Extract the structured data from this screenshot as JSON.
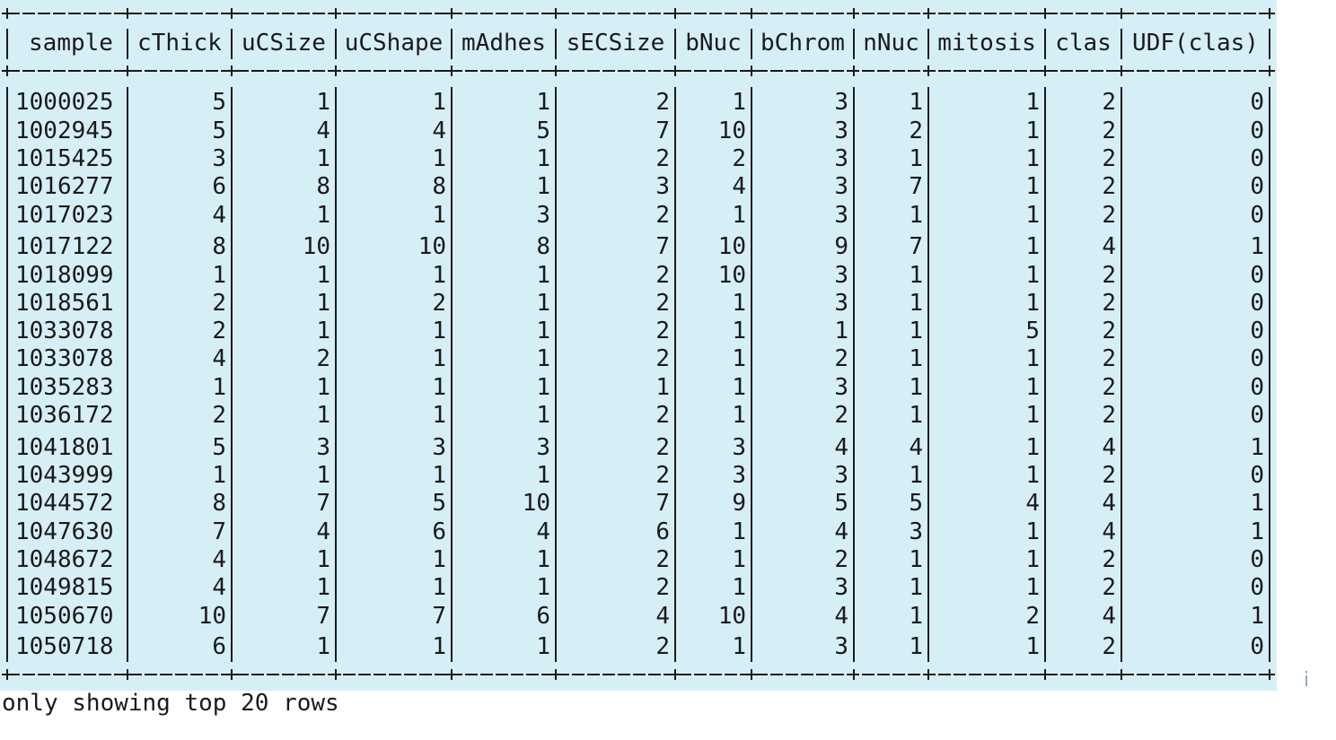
{
  "table": {
    "headers": [
      "sample",
      "cThick",
      "uCSize",
      "uCShape",
      "mAdhes",
      "sECSize",
      "bNuc",
      "bChrom",
      "nNuc",
      "mitosis",
      "clas",
      "UDF(clas)"
    ],
    "rows": [
      [
        "1000025",
        "5",
        "1",
        "1",
        "1",
        "2",
        "1",
        "3",
        "1",
        "1",
        "2",
        "0"
      ],
      [
        "1002945",
        "5",
        "4",
        "4",
        "5",
        "7",
        "10",
        "3",
        "2",
        "1",
        "2",
        "0"
      ],
      [
        "1015425",
        "3",
        "1",
        "1",
        "1",
        "2",
        "2",
        "3",
        "1",
        "1",
        "2",
        "0"
      ],
      [
        "1016277",
        "6",
        "8",
        "8",
        "1",
        "3",
        "4",
        "3",
        "7",
        "1",
        "2",
        "0"
      ],
      [
        "1017023",
        "4",
        "1",
        "1",
        "3",
        "2",
        "1",
        "3",
        "1",
        "1",
        "2",
        "0"
      ],
      [
        "1017122",
        "8",
        "10",
        "10",
        "8",
        "7",
        "10",
        "9",
        "7",
        "1",
        "4",
        "1"
      ],
      [
        "1018099",
        "1",
        "1",
        "1",
        "1",
        "2",
        "10",
        "3",
        "1",
        "1",
        "2",
        "0"
      ],
      [
        "1018561",
        "2",
        "1",
        "2",
        "1",
        "2",
        "1",
        "3",
        "1",
        "1",
        "2",
        "0"
      ],
      [
        "1033078",
        "2",
        "1",
        "1",
        "1",
        "2",
        "1",
        "1",
        "1",
        "5",
        "2",
        "0"
      ],
      [
        "1033078",
        "4",
        "2",
        "1",
        "1",
        "2",
        "1",
        "2",
        "1",
        "1",
        "2",
        "0"
      ],
      [
        "1035283",
        "1",
        "1",
        "1",
        "1",
        "1",
        "1",
        "3",
        "1",
        "1",
        "2",
        "0"
      ],
      [
        "1036172",
        "2",
        "1",
        "1",
        "1",
        "2",
        "1",
        "2",
        "1",
        "1",
        "2",
        "0"
      ],
      [
        "1041801",
        "5",
        "3",
        "3",
        "3",
        "2",
        "3",
        "4",
        "4",
        "1",
        "4",
        "1"
      ],
      [
        "1043999",
        "1",
        "1",
        "1",
        "1",
        "2",
        "3",
        "3",
        "1",
        "1",
        "2",
        "0"
      ],
      [
        "1044572",
        "8",
        "7",
        "5",
        "10",
        "7",
        "9",
        "5",
        "5",
        "4",
        "4",
        "1"
      ],
      [
        "1047630",
        "7",
        "4",
        "6",
        "4",
        "6",
        "1",
        "4",
        "3",
        "1",
        "4",
        "1"
      ],
      [
        "1048672",
        "4",
        "1",
        "1",
        "1",
        "2",
        "1",
        "2",
        "1",
        "1",
        "2",
        "0"
      ],
      [
        "1049815",
        "4",
        "1",
        "1",
        "1",
        "2",
        "1",
        "3",
        "1",
        "1",
        "2",
        "0"
      ],
      [
        "1050670",
        "10",
        "7",
        "7",
        "6",
        "4",
        "10",
        "4",
        "1",
        "2",
        "4",
        "1"
      ],
      [
        "1050718",
        "6",
        "1",
        "1",
        "1",
        "2",
        "1",
        "3",
        "1",
        "1",
        "2",
        "0"
      ]
    ]
  },
  "footer": {
    "text": "only showing top 20 rows"
  },
  "colors": {
    "table_background": "#d6eef6",
    "text": "#1a1a1a",
    "info_icon": "#8fa9bd"
  },
  "icons": {
    "info": "info-icon"
  }
}
